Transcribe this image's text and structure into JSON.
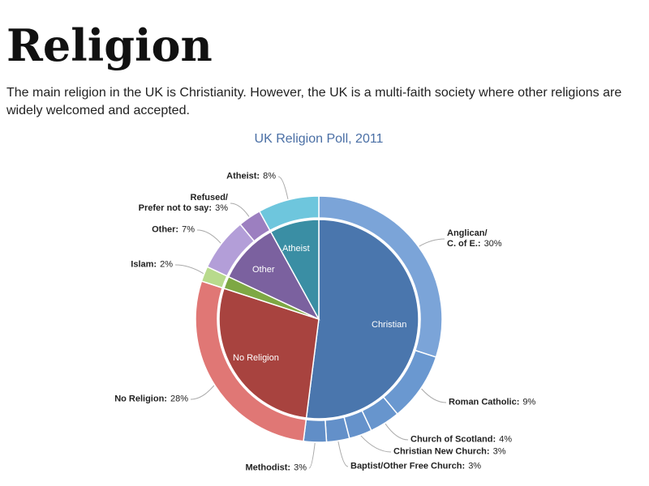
{
  "page": {
    "heading": "Religion",
    "text": "The main religion in the UK is Christianity. However, the UK is a multi-faith society where other religions are widely welcomed and accepted."
  },
  "chart_data": {
    "type": "donut",
    "title": "UK Religion Poll, 2011",
    "inner": {
      "categories": [
        "Christian",
        "No Religion",
        null,
        "Other",
        "Atheist"
      ],
      "values": [
        52,
        28,
        2,
        10,
        8
      ],
      "colors": [
        "#4a76ad",
        "#a8433f",
        "#7ea844",
        "#7b619f",
        "#3a8ea4"
      ]
    },
    "outer": {
      "categories": [
        "Anglican/\nC. of E.:",
        "Roman Catholic:",
        "Church of Scotland:",
        "Christian New Church:",
        "Baptist/Other Free Church:",
        "Methodist:",
        "No Religion:",
        "Islam:",
        "Other:",
        "Refused/\nPrefer not to say:",
        "Atheist:"
      ],
      "values": [
        30,
        9,
        4,
        3,
        3,
        3,
        28,
        2,
        7,
        3,
        8
      ],
      "value_labels": [
        "30%",
        "9%",
        "4%",
        "3%",
        "3%",
        "3%",
        "28%",
        "2%",
        "7%",
        "3%",
        "8%"
      ],
      "colors": [
        "#7ba4d8",
        "#6a98d0",
        "#6795cd",
        "#6592cb",
        "#6390c9",
        "#618ec7",
        "#e07775",
        "#b8da8c",
        "#b39ed8",
        "#9c7fc0",
        "#6ec6dd"
      ]
    }
  }
}
